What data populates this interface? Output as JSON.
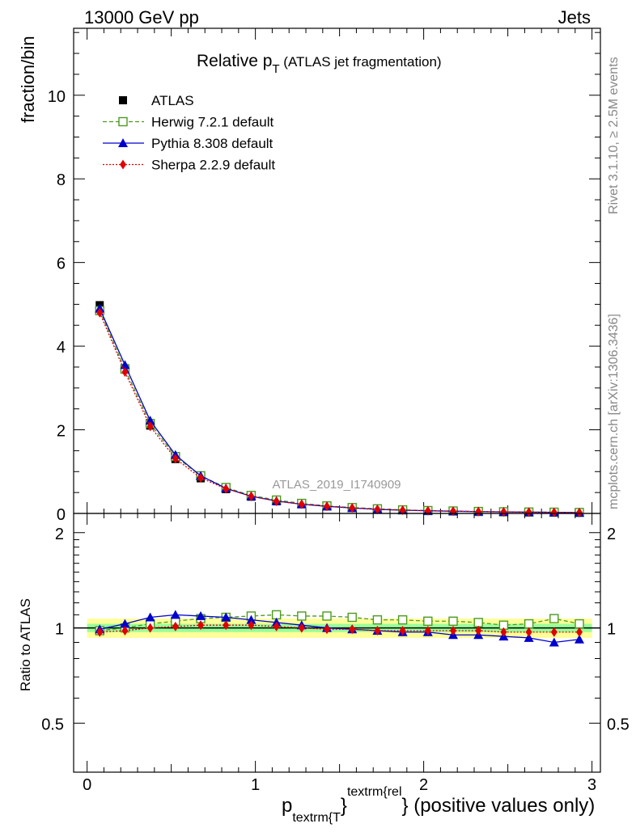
{
  "header": {
    "left": "13000 GeV pp",
    "right": "Jets"
  },
  "side": {
    "rivet": "Rivet 3.1.10, ≥ 2.5M events",
    "mcplots": "mcplots.cern.ch [arXiv:1306.3436]"
  },
  "title": {
    "main": "Relative p",
    "sub": "T",
    "rest": " (ATLAS jet fragmentation)"
  },
  "watermark": "ATLAS_2019_I1740909",
  "xlabel": {
    "p": "p",
    "sub": "textrm{T",
    "sup": "textrm{rel",
    "brace1": "}",
    "brace2": "}",
    "rest": " (positive values only)"
  },
  "chart_data": [
    {
      "type": "scatter",
      "ylabel": "fraction/bin",
      "xlim": [
        -0.08,
        3.05
      ],
      "ylim": [
        0,
        11.6
      ],
      "x_ticks": [
        "0",
        "1",
        "2",
        "3"
      ],
      "y_ticks": [
        "0",
        "2",
        "4",
        "6",
        "8",
        "10"
      ],
      "x": [
        0.075,
        0.225,
        0.375,
        0.525,
        0.675,
        0.825,
        0.975,
        1.125,
        1.275,
        1.425,
        1.575,
        1.725,
        1.875,
        2.025,
        2.175,
        2.325,
        2.475,
        2.625,
        2.775,
        2.925
      ],
      "series": [
        {
          "name": "ATLAS",
          "color": "#000000",
          "marker": "filled-square",
          "values": [
            4.98,
            3.47,
            2.1,
            1.3,
            0.84,
            0.58,
            0.4,
            0.29,
            0.22,
            0.17,
            0.13,
            0.1,
            0.08,
            0.065,
            0.055,
            0.045,
            0.038,
            0.032,
            0.027,
            0.022
          ]
        },
        {
          "name": "Herwig 7.2.1 default",
          "color": "#4c9a1c",
          "marker": "open-square",
          "line": "dashed",
          "values": [
            4.85,
            3.45,
            2.15,
            1.36,
            0.9,
            0.62,
            0.43,
            0.32,
            0.24,
            0.18,
            0.14,
            0.11,
            0.085,
            0.068,
            0.058,
            0.047,
            0.039,
            0.033,
            0.029,
            0.023
          ]
        },
        {
          "name": "Pythia 8.308 default",
          "color": "#0000cc",
          "marker": "filled-triangle",
          "line": "solid",
          "values": [
            4.9,
            3.55,
            2.22,
            1.4,
            0.9,
            0.6,
            0.41,
            0.3,
            0.22,
            0.17,
            0.13,
            0.098,
            0.077,
            0.063,
            0.052,
            0.043,
            0.036,
            0.03,
            0.025,
            0.02
          ]
        },
        {
          "name": "Sherpa 2.2.9 default",
          "color": "#e00000",
          "marker": "filled-diamond",
          "line": "dotted",
          "values": [
            4.8,
            3.38,
            2.08,
            1.31,
            0.85,
            0.59,
            0.41,
            0.29,
            0.22,
            0.17,
            0.13,
            0.098,
            0.078,
            0.064,
            0.054,
            0.044,
            0.037,
            0.031,
            0.026,
            0.021
          ]
        }
      ]
    },
    {
      "type": "scatter",
      "ylabel": "Ratio to ATLAS",
      "xlim": [
        -0.08,
        3.05
      ],
      "ylim": [
        0.35,
        2.3
      ],
      "x_ticks": [
        "0",
        "1",
        "2",
        "3"
      ],
      "y_ticks": [
        "0.5",
        "1",
        "2"
      ],
      "x": [
        0.075,
        0.225,
        0.375,
        0.525,
        0.675,
        0.825,
        0.975,
        1.125,
        1.275,
        1.425,
        1.575,
        1.725,
        1.875,
        2.025,
        2.175,
        2.325,
        2.475,
        2.625,
        2.775,
        2.925
      ],
      "band": {
        "yellow": 0.07,
        "green": 0.03
      },
      "series": [
        {
          "name": "Herwig 7.2.1 default",
          "color": "#4c9a1c",
          "marker": "open-square",
          "line": "dashed",
          "values": [
            0.98,
            1.0,
            1.03,
            1.05,
            1.07,
            1.08,
            1.09,
            1.1,
            1.09,
            1.09,
            1.08,
            1.06,
            1.06,
            1.05,
            1.05,
            1.04,
            1.02,
            1.03,
            1.07,
            1.03
          ]
        },
        {
          "name": "Pythia 8.308 default",
          "color": "#0000cc",
          "marker": "filled-triangle",
          "line": "solid",
          "values": [
            0.99,
            1.03,
            1.08,
            1.1,
            1.09,
            1.08,
            1.06,
            1.04,
            1.02,
            1.0,
            0.99,
            0.98,
            0.97,
            0.97,
            0.95,
            0.95,
            0.94,
            0.93,
            0.9,
            0.92
          ]
        },
        {
          "name": "Sherpa 2.2.9 default",
          "color": "#e00000",
          "marker": "filled-diamond",
          "line": "dotted",
          "values": [
            0.97,
            0.98,
            1.0,
            1.01,
            1.02,
            1.02,
            1.02,
            1.01,
            1.0,
            0.99,
            0.99,
            0.98,
            0.98,
            0.98,
            0.98,
            0.98,
            0.97,
            0.97,
            0.97,
            0.97
          ]
        }
      ]
    }
  ]
}
